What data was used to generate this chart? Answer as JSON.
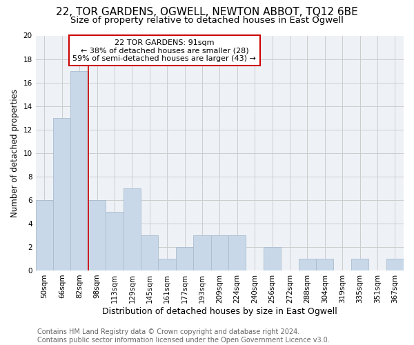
{
  "title": "22, TOR GARDENS, OGWELL, NEWTON ABBOT, TQ12 6BE",
  "subtitle": "Size of property relative to detached houses in East Ogwell",
  "xlabel": "Distribution of detached houses by size in East Ogwell",
  "ylabel": "Number of detached properties",
  "bar_labels": [
    "50sqm",
    "66sqm",
    "82sqm",
    "98sqm",
    "113sqm",
    "129sqm",
    "145sqm",
    "161sqm",
    "177sqm",
    "193sqm",
    "209sqm",
    "224sqm",
    "240sqm",
    "256sqm",
    "272sqm",
    "288sqm",
    "304sqm",
    "319sqm",
    "335sqm",
    "351sqm",
    "367sqm"
  ],
  "bar_values": [
    6,
    13,
    17,
    6,
    5,
    7,
    3,
    1,
    2,
    3,
    3,
    3,
    0,
    2,
    0,
    1,
    1,
    0,
    1,
    0,
    1
  ],
  "bar_color": "#c8d8e8",
  "bar_edge_color": "#aabcce",
  "vline_x": 2.5,
  "vline_color": "#cc0000",
  "annotation_text": "22 TOR GARDENS: 91sqm\n← 38% of detached houses are smaller (28)\n59% of semi-detached houses are larger (43) →",
  "annotation_box_color": "#ffffff",
  "annotation_box_edge": "#cc0000",
  "ylim": [
    0,
    20
  ],
  "yticks": [
    0,
    2,
    4,
    6,
    8,
    10,
    12,
    14,
    16,
    18,
    20
  ],
  "grid_color": "#cccccc",
  "bg_color": "#eef2f7",
  "footer": "Contains HM Land Registry data © Crown copyright and database right 2024.\nContains public sector information licensed under the Open Government Licence v3.0.",
  "title_fontsize": 11,
  "subtitle_fontsize": 9.5,
  "xlabel_fontsize": 9,
  "ylabel_fontsize": 8.5,
  "tick_fontsize": 7.5,
  "footer_fontsize": 7,
  "annotation_fontsize": 8
}
